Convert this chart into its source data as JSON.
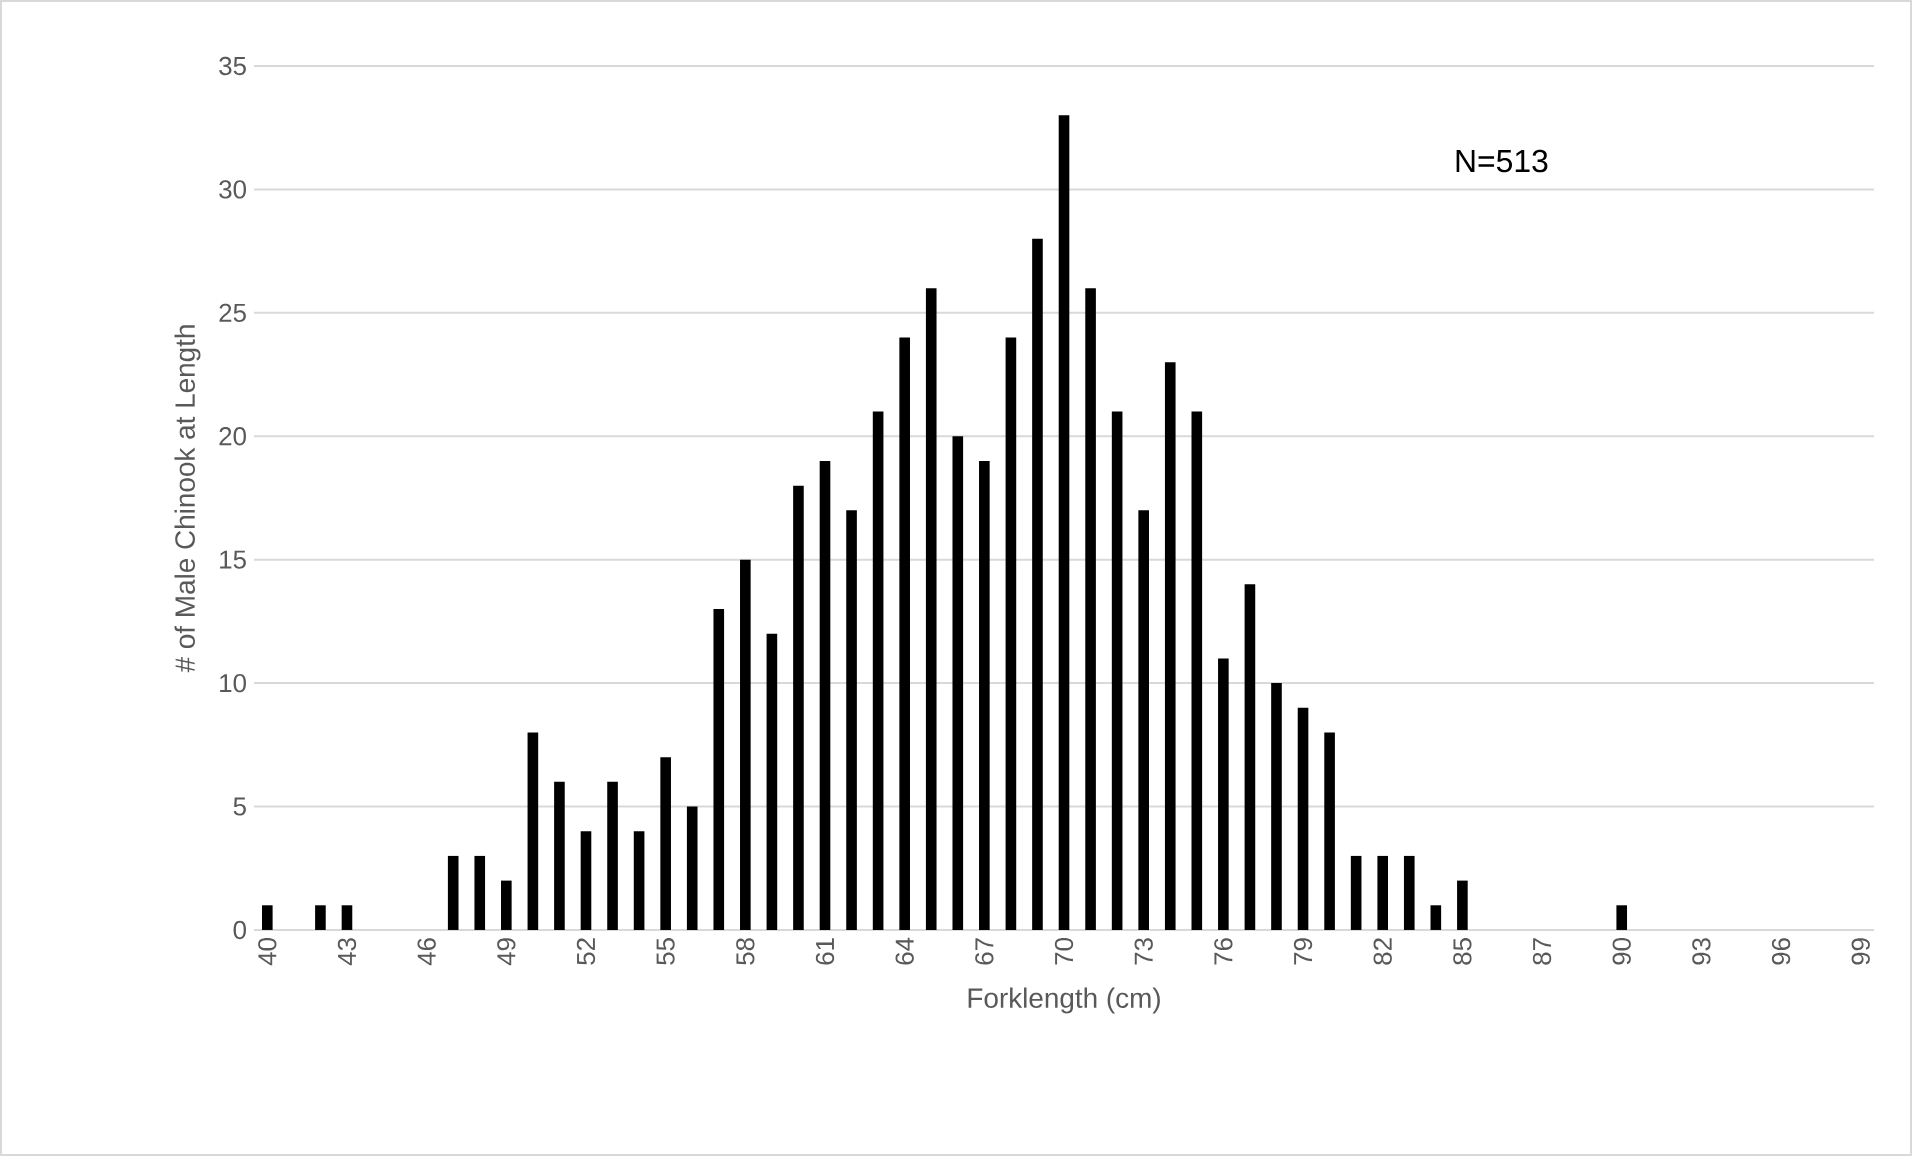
{
  "chart_data": {
    "type": "bar",
    "xlabel": "Forklength (cm)",
    "ylabel": "# of Male Chinook at Length",
    "annotations": [
      "N=513"
    ],
    "categories": [
      "40",
      null,
      null,
      "43",
      null,
      null,
      "46",
      null,
      null,
      "49",
      null,
      null,
      "52",
      null,
      null,
      "55",
      null,
      null,
      "58",
      null,
      null,
      "61",
      null,
      null,
      "64",
      null,
      null,
      "67",
      null,
      null,
      "70",
      null,
      null,
      "73",
      null,
      null,
      "76",
      null,
      null,
      "79",
      null,
      null,
      "82",
      null,
      null,
      "85",
      null,
      null,
      "87",
      null,
      null,
      "90",
      null,
      null,
      "93",
      null,
      null,
      "96",
      null,
      null,
      "99"
    ],
    "values": [
      1,
      0,
      1,
      1,
      0,
      0,
      0,
      3,
      3,
      2,
      8,
      6,
      4,
      6,
      4,
      7,
      5,
      13,
      15,
      12,
      18,
      19,
      17,
      21,
      24,
      26,
      20,
      19,
      24,
      28,
      33,
      26,
      21,
      17,
      23,
      21,
      11,
      14,
      10,
      9,
      8,
      3,
      3,
      3,
      1,
      2,
      0,
      0,
      0,
      0,
      0,
      1,
      0,
      0,
      0,
      0,
      0,
      0,
      0,
      0,
      0
    ],
    "color": "#000000",
    "ylim": [
      0,
      35
    ],
    "yticks": [
      0,
      5,
      10,
      15,
      20,
      25,
      30,
      35
    ],
    "grid": "y"
  }
}
